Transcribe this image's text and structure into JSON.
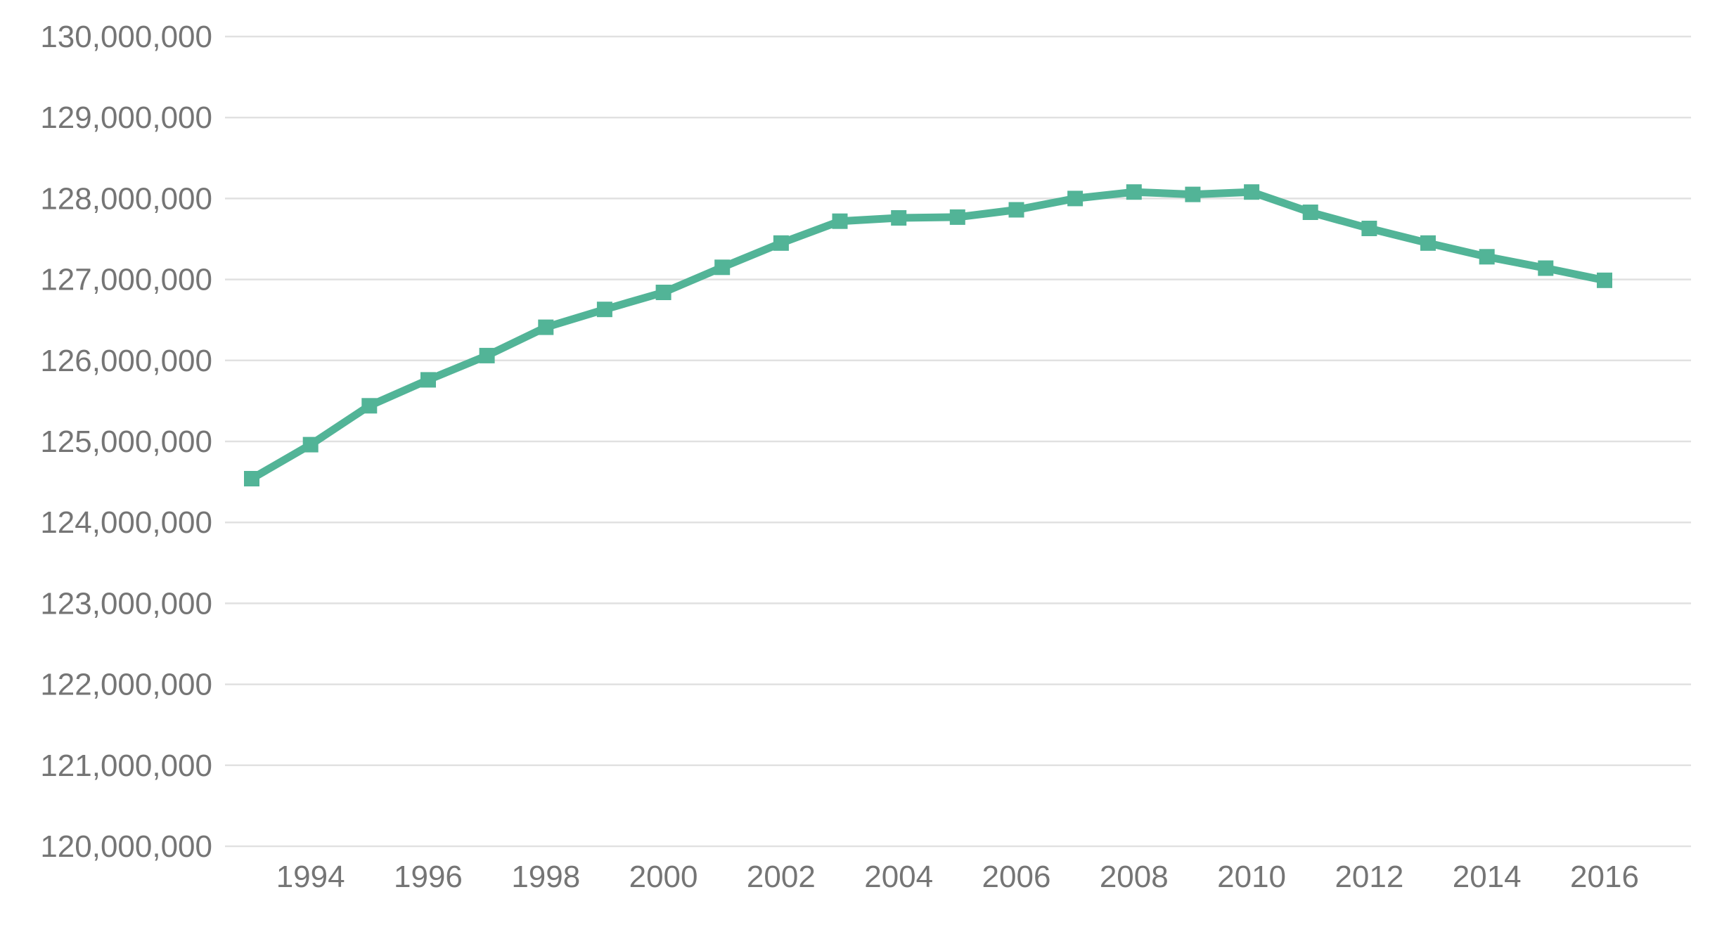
{
  "chart_data": {
    "type": "line",
    "title": "",
    "xlabel": "",
    "ylabel": "",
    "grid": true,
    "legend": "none",
    "color": "#52b497",
    "ylim": [
      120000000,
      130000000
    ],
    "y_ticks": [
      120000000,
      121000000,
      122000000,
      123000000,
      124000000,
      125000000,
      126000000,
      127000000,
      128000000,
      129000000,
      130000000
    ],
    "y_tick_labels": [
      "120,000,000",
      "121,000,000",
      "122,000,000",
      "123,000,000",
      "124,000,000",
      "125,000,000",
      "126,000,000",
      "127,000,000",
      "128,000,000",
      "129,000,000",
      "130,000,000"
    ],
    "xlim": [
      1993,
      2016
    ],
    "x_tick_labels": [
      "1994",
      "1996",
      "1998",
      "2000",
      "2002",
      "2004",
      "2006",
      "2008",
      "2010",
      "2012",
      "2014",
      "2016"
    ],
    "x": [
      1993,
      1994,
      1995,
      1996,
      1997,
      1998,
      1999,
      2000,
      2001,
      2002,
      2003,
      2004,
      2005,
      2006,
      2007,
      2008,
      2009,
      2010,
      2011,
      2012,
      2013,
      2014,
      2015,
      2016
    ],
    "series": [
      {
        "values": [
          124540000,
          124960000,
          125440000,
          125760000,
          126060000,
          126410000,
          126630000,
          126840000,
          127150000,
          127450000,
          127720000,
          127760000,
          127770000,
          127860000,
          128000000,
          128080000,
          128050000,
          128080000,
          127830000,
          127630000,
          127450000,
          127280000,
          127140000,
          126990000
        ]
      }
    ]
  }
}
